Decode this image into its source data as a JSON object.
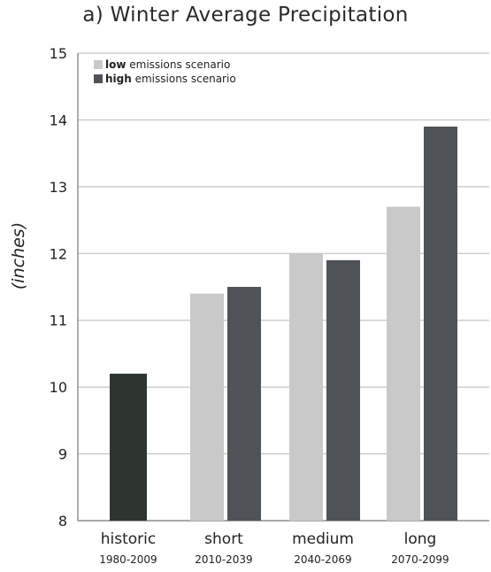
{
  "chart_data": {
    "type": "bar",
    "title": "a) Winter Average Precipitation",
    "ylabel": "(inches)",
    "xlabel": "",
    "ylim": [
      8,
      15
    ],
    "yticks": [
      8,
      9,
      10,
      11,
      12,
      13,
      14,
      15
    ],
    "grid": true,
    "legend_position": "top-left",
    "categories": [
      {
        "name": "historic",
        "period": "1980-2009"
      },
      {
        "name": "short",
        "period": "2010-2039"
      },
      {
        "name": "medium",
        "period": "2040-2069"
      },
      {
        "name": "long",
        "period": "2070-2099"
      }
    ],
    "historic": {
      "value": 10.2,
      "color": "#2e3531"
    },
    "series": [
      {
        "name_bold": "low",
        "name_rest": " emissions scenario",
        "color": "#c9c9c9",
        "values": [
          null,
          11.4,
          12.0,
          12.7
        ]
      },
      {
        "name_bold": "high",
        "name_rest": " emissions scenario",
        "color": "#4f5358",
        "values": [
          null,
          11.5,
          11.9,
          13.9
        ]
      }
    ]
  }
}
